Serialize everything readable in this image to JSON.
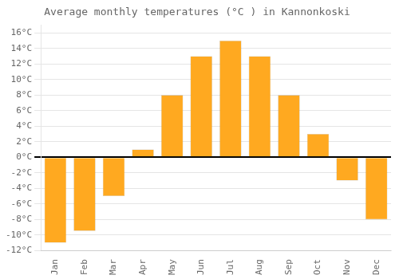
{
  "chart_data": {
    "type": "bar",
    "title": "Average monthly temperatures (°C ) in Kannonkoski",
    "categories": [
      "Jan",
      "Feb",
      "Mar",
      "Apr",
      "May",
      "Jun",
      "Jul",
      "Aug",
      "Sep",
      "Oct",
      "Nov",
      "Dec"
    ],
    "values": [
      -11,
      -9.5,
      -5,
      1,
      8,
      13,
      15,
      13,
      8,
      3,
      -3,
      -8
    ],
    "color": "#FFA920",
    "ylim": [
      -12,
      17
    ],
    "yticks": [
      {
        "value": -12,
        "label": "-12°C"
      },
      {
        "value": -10,
        "label": "-10°C"
      },
      {
        "value": -8,
        "label": "-8°C"
      },
      {
        "value": -6,
        "label": "-6°C"
      },
      {
        "value": -4,
        "label": "-4°C"
      },
      {
        "value": -2,
        "label": "-2°C"
      },
      {
        "value": 0,
        "label": "0°C"
      },
      {
        "value": 2,
        "label": "2°C"
      },
      {
        "value": 4,
        "label": "4°C"
      },
      {
        "value": 6,
        "label": "6°C"
      },
      {
        "value": 8,
        "label": "8°C"
      },
      {
        "value": 10,
        "label": "10°C"
      },
      {
        "value": 12,
        "label": "12°C"
      },
      {
        "value": 14,
        "label": "14°C"
      },
      {
        "value": 16,
        "label": "16°C"
      }
    ],
    "grid": true
  }
}
